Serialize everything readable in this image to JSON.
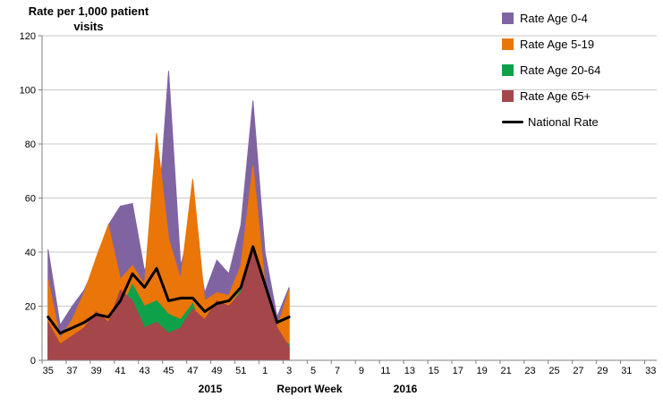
{
  "chart_data": {
    "type": "area",
    "title": "Rate per 1,000 patient visits",
    "title_lines": [
      "Rate per 1,000 patient",
      "visits"
    ],
    "x_axis_title": "Report Week",
    "ylim": [
      0,
      120
    ],
    "y_ticks": [
      0,
      20,
      40,
      60,
      80,
      100,
      120
    ],
    "grid": true,
    "legend_position": "top-right",
    "x_label_interval": 2,
    "year_groups": [
      {
        "label": "2015",
        "weeks": "35-52"
      },
      {
        "label": "2016",
        "weeks": "1-33"
      }
    ],
    "x_categories": [
      "35",
      "36",
      "37",
      "38",
      "39",
      "40",
      "41",
      "42",
      "43",
      "44",
      "45",
      "46",
      "47",
      "48",
      "49",
      "50",
      "51",
      "52",
      "1",
      "2",
      "3",
      "4",
      "5",
      "6",
      "7",
      "8",
      "9",
      "10",
      "11",
      "12",
      "13",
      "14",
      "15",
      "16",
      "17",
      "18",
      "19",
      "20",
      "21",
      "22",
      "23",
      "24",
      "25",
      "26",
      "27",
      "28",
      "29",
      "30",
      "31",
      "32",
      "33"
    ],
    "x_tick_labels": [
      "35",
      "37",
      "39",
      "41",
      "43",
      "45",
      "47",
      "49",
      "51",
      "1",
      "3",
      "5",
      "7",
      "9",
      "11",
      "13",
      "15",
      "17",
      "19",
      "21",
      "23",
      "25",
      "27",
      "29",
      "31",
      "33"
    ],
    "weeks_with_data": [
      "35",
      "36",
      "37",
      "38",
      "39",
      "40",
      "41",
      "42",
      "43",
      "44",
      "45",
      "46",
      "47",
      "48",
      "49",
      "50",
      "51",
      "52",
      "1",
      "2",
      "3"
    ],
    "colors": {
      "gridline": "#C9C9C9",
      "axis": "#808080",
      "text": "#000000"
    },
    "series": [
      {
        "name": "Rate Age 0-4",
        "type": "area",
        "color": "#8064A2",
        "values": [
          41,
          13,
          20,
          26,
          36,
          50,
          57,
          58,
          33,
          45,
          107,
          35,
          52,
          25,
          37,
          32,
          50,
          96,
          40,
          16,
          27
        ]
      },
      {
        "name": "Rate Age 5-19",
        "type": "area",
        "color": "#EA7508",
        "values": [
          30,
          8,
          15,
          25,
          38,
          50,
          30,
          35,
          28,
          84,
          45,
          30,
          67,
          22,
          25,
          24,
          35,
          72,
          28,
          12,
          26
        ]
      },
      {
        "name": "Rate Age 20-64",
        "type": "area",
        "color": "#0FA04A",
        "values": [
          8,
          4,
          7,
          10,
          16,
          12,
          18,
          28,
          20,
          22,
          17,
          15,
          21,
          8,
          20,
          19,
          26,
          30,
          12,
          8,
          6
        ]
      },
      {
        "name": "Rate Age 65+",
        "type": "area",
        "color": "#A5464B",
        "values": [
          14,
          6,
          9,
          12,
          18,
          14,
          26,
          22,
          12,
          14,
          10,
          12,
          19,
          15,
          22,
          20,
          25,
          40,
          28,
          12,
          5
        ]
      },
      {
        "name": "National Rate",
        "type": "line",
        "color": "#000000",
        "values": [
          16,
          10,
          12,
          14,
          17,
          16,
          22,
          32,
          27,
          34,
          22,
          23,
          23,
          18,
          21,
          22,
          27,
          42,
          28,
          14,
          16
        ]
      }
    ]
  }
}
